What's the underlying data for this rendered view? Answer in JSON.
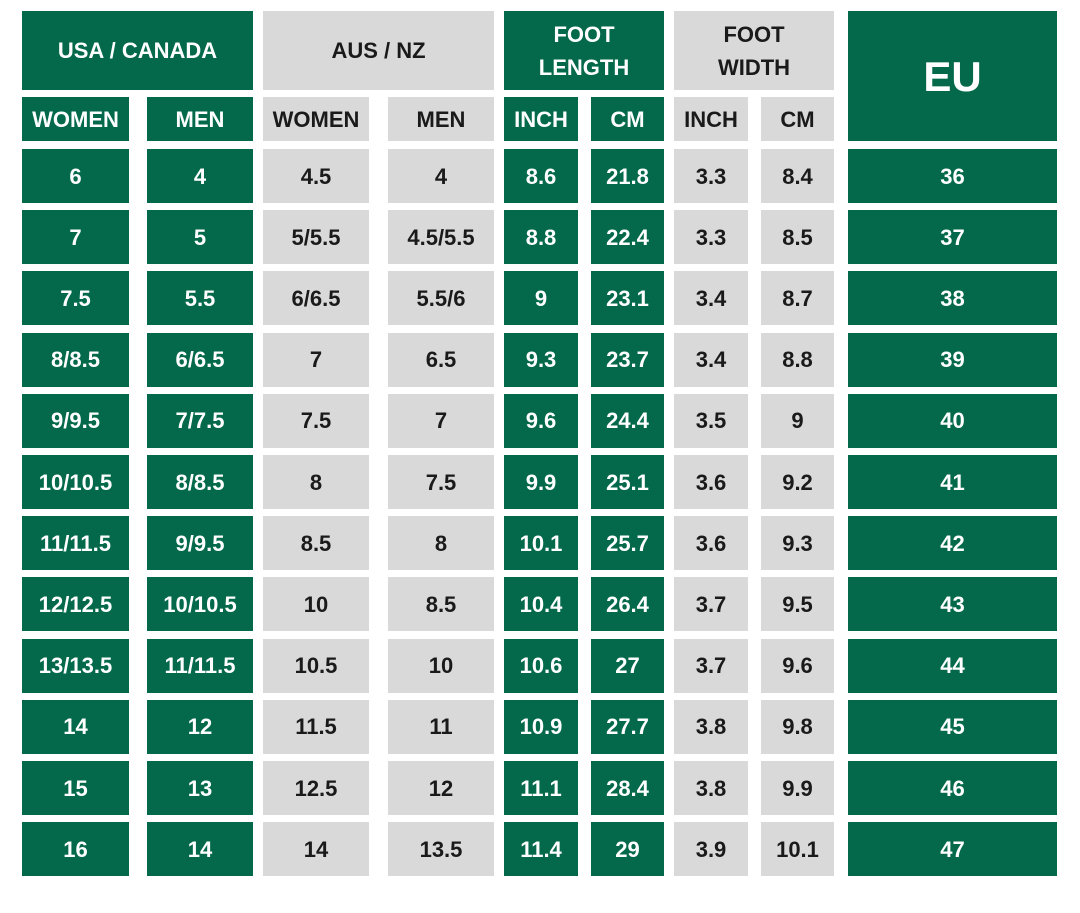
{
  "table": {
    "groups": [
      "USA / CANADA",
      "AUS / NZ",
      "FOOT\nLENGTH",
      "FOOT\nWIDTH",
      "EU"
    ],
    "subheaders": [
      "WOMEN",
      "MEN",
      "WOMEN",
      "MEN",
      "INCH",
      "CM",
      "INCH",
      "CM"
    ],
    "rows": [
      [
        "6",
        "4",
        "4.5",
        "4",
        "8.6",
        "21.8",
        "3.3",
        "8.4",
        "36"
      ],
      [
        "7",
        "5",
        "5/5.5",
        "4.5/5.5",
        "8.8",
        "22.4",
        "3.3",
        "8.5",
        "37"
      ],
      [
        "7.5",
        "5.5",
        "6/6.5",
        "5.5/6",
        "9",
        "23.1",
        "3.4",
        "8.7",
        "38"
      ],
      [
        "8/8.5",
        "6/6.5",
        "7",
        "6.5",
        "9.3",
        "23.7",
        "3.4",
        "8.8",
        "39"
      ],
      [
        "9/9.5",
        "7/7.5",
        "7.5",
        "7",
        "9.6",
        "24.4",
        "3.5",
        "9",
        "40"
      ],
      [
        "10/10.5",
        "8/8.5",
        "8",
        "7.5",
        "9.9",
        "25.1",
        "3.6",
        "9.2",
        "41"
      ],
      [
        "11/11.5",
        "9/9.5",
        "8.5",
        "8",
        "10.1",
        "25.7",
        "3.6",
        "9.3",
        "42"
      ],
      [
        "12/12.5",
        "10/10.5",
        "10",
        "8.5",
        "10.4",
        "26.4",
        "3.7",
        "9.5",
        "43"
      ],
      [
        "13/13.5",
        "11/11.5",
        "10.5",
        "10",
        "10.6",
        "27",
        "3.7",
        "9.6",
        "44"
      ],
      [
        "14",
        "12",
        "11.5",
        "11",
        "10.9",
        "27.7",
        "3.8",
        "9.8",
        "45"
      ],
      [
        "15",
        "13",
        "12.5",
        "12",
        "11.1",
        "28.4",
        "3.8",
        "9.9",
        "46"
      ],
      [
        "16",
        "14",
        "14",
        "13.5",
        "11.4",
        "29",
        "3.9",
        "10.1",
        "47"
      ]
    ]
  }
}
